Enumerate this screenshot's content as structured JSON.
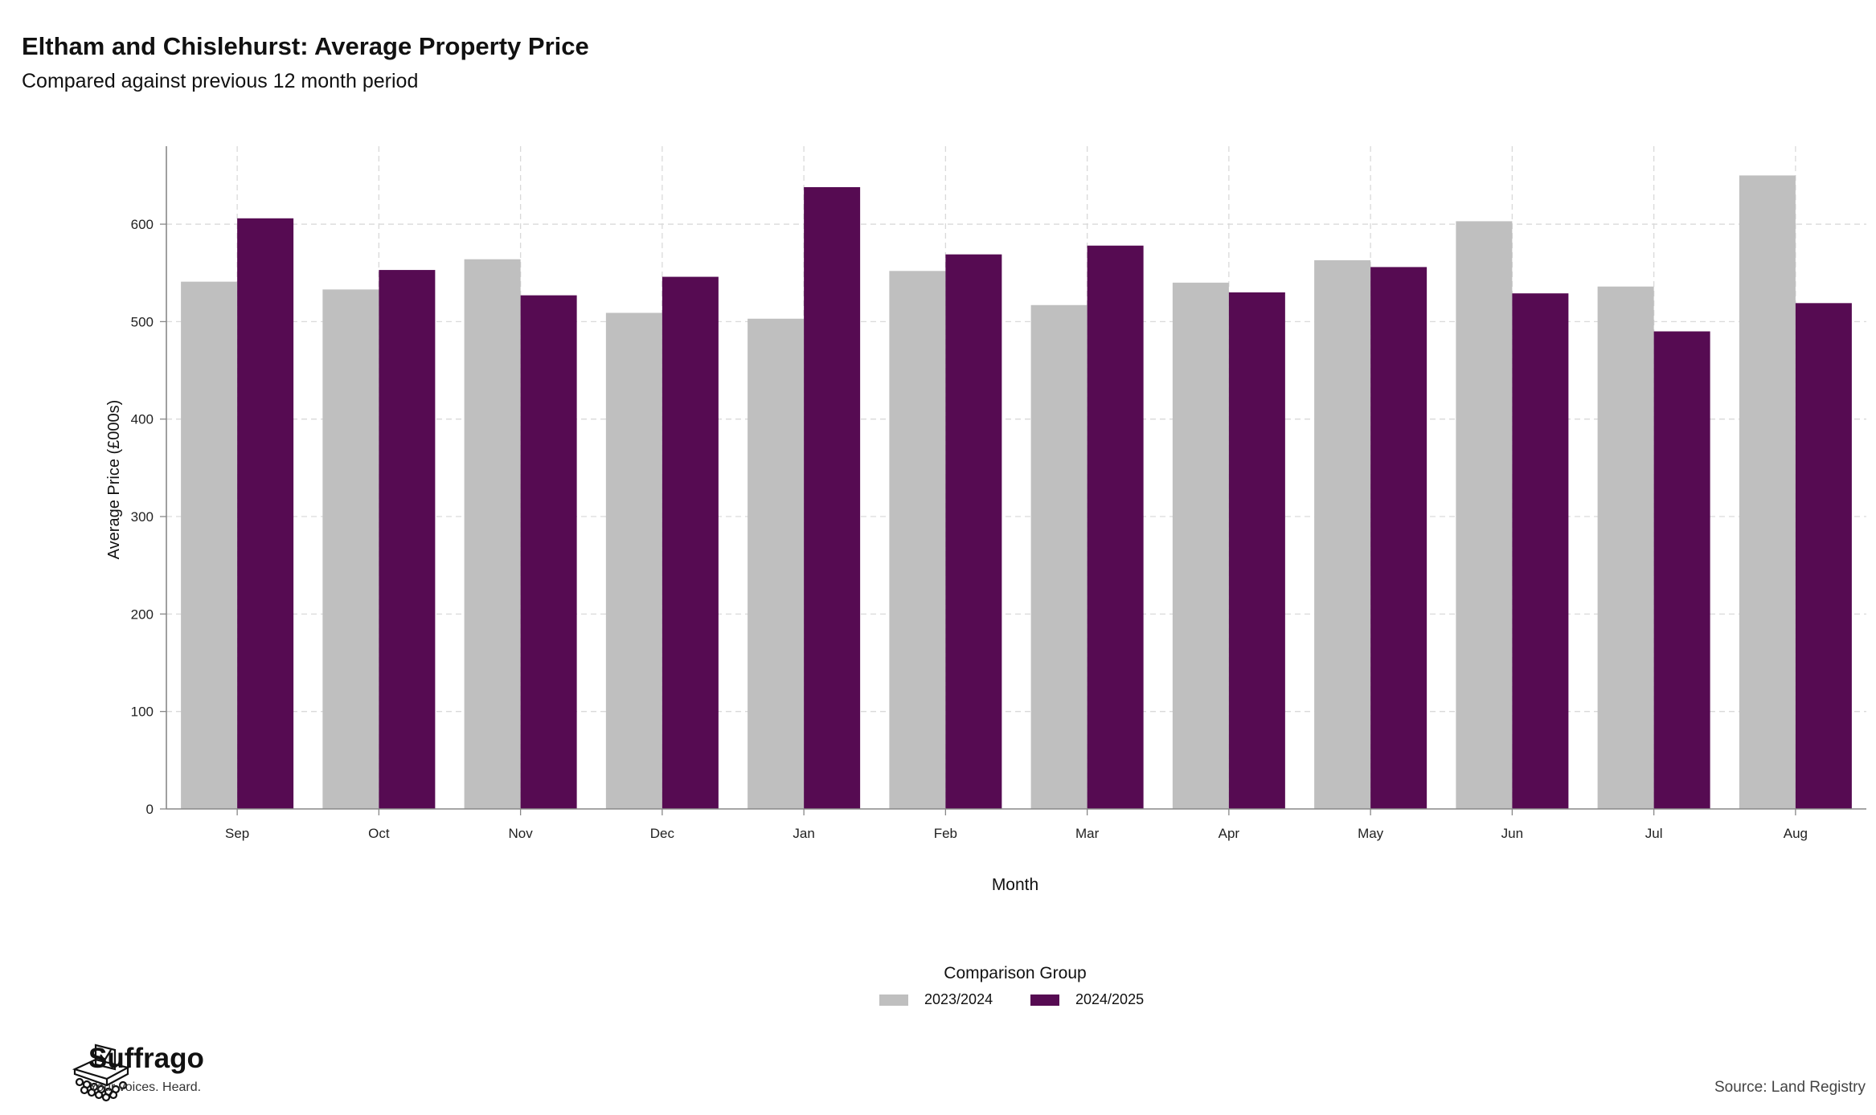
{
  "title": "Eltham and Chislehurst: Average Property Price",
  "subtitle": "Compared against previous 12 month period",
  "source": "Source: Land Registry",
  "brand": {
    "name": "Suffrago",
    "tagline": "Your voices. Heard.",
    "icon": "ballot-box-icon"
  },
  "legend": {
    "title": "Comparison Group",
    "items": [
      {
        "label": "2023/2024",
        "color": "#bfbfbf"
      },
      {
        "label": "2024/2025",
        "color": "#560b52"
      }
    ]
  },
  "chart_data": {
    "type": "bar",
    "xlabel": "Month",
    "ylabel": "Average Price (£000s)",
    "ylim": [
      0,
      680
    ],
    "yticks": [
      0,
      100,
      200,
      300,
      400,
      500,
      600
    ],
    "grid": true,
    "legend_position": "bottom",
    "categories": [
      "Sep",
      "Oct",
      "Nov",
      "Dec",
      "Jan",
      "Feb",
      "Mar",
      "Apr",
      "May",
      "Jun",
      "Jul",
      "Aug"
    ],
    "series": [
      {
        "name": "2023/2024",
        "color": "#bfbfbf",
        "values": [
          541,
          533,
          564,
          509,
          503,
          552,
          517,
          540,
          563,
          603,
          536,
          650
        ]
      },
      {
        "name": "2024/2025",
        "color": "#560b52",
        "values": [
          606,
          553,
          527,
          546,
          638,
          569,
          578,
          530,
          556,
          529,
          490,
          519
        ]
      }
    ]
  }
}
